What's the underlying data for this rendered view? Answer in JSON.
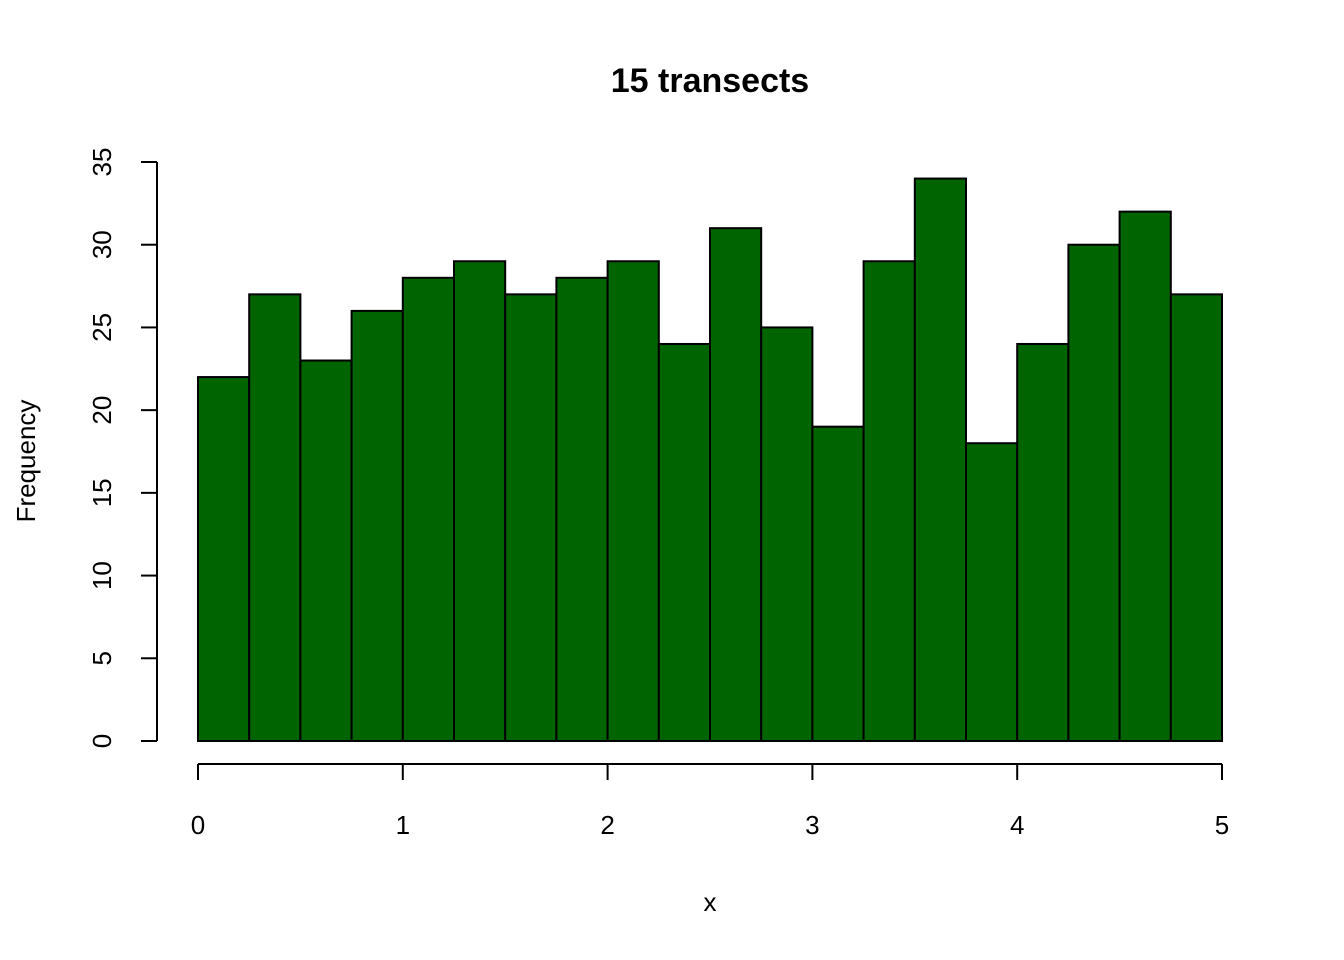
{
  "chart_data": {
    "type": "bar",
    "title": "15 transects",
    "xlabel": "x",
    "ylabel": "Frequency",
    "bin_width": 0.25,
    "bin_edges": [
      0,
      0.25,
      0.5,
      0.75,
      1,
      1.25,
      1.5,
      1.75,
      2,
      2.25,
      2.5,
      2.75,
      3,
      3.25,
      3.5,
      3.75,
      4,
      4.25,
      4.5,
      4.75,
      5
    ],
    "values": [
      22,
      27,
      23,
      26,
      28,
      29,
      27,
      28,
      29,
      24,
      31,
      25,
      19,
      29,
      34,
      18,
      24,
      30,
      32,
      27
    ],
    "xlim": [
      0,
      5
    ],
    "ylim": [
      0,
      35
    ],
    "x_ticks": [
      "0",
      "1",
      "2",
      "3",
      "4",
      "5"
    ],
    "y_ticks": [
      "0",
      "5",
      "10",
      "15",
      "20",
      "25",
      "30",
      "35"
    ],
    "bar_color": "#006400",
    "grid": false,
    "legend": "none"
  }
}
